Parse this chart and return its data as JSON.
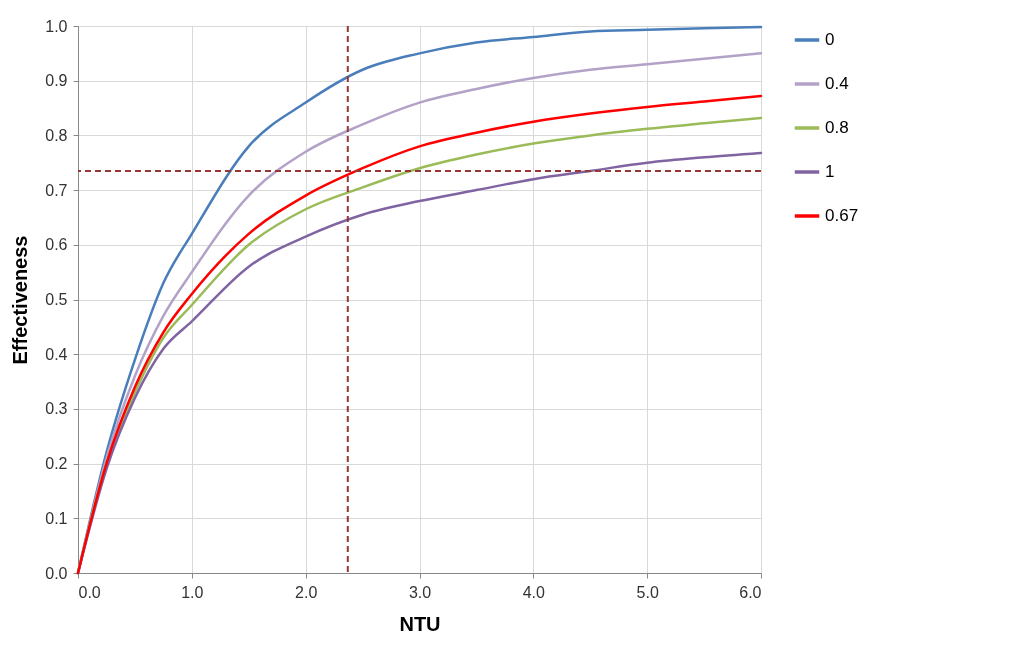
{
  "chart_data": {
    "type": "line",
    "xlabel": "NTU",
    "ylabel": "Effectiveness",
    "x": [
      0,
      0.25,
      0.5,
      0.75,
      1,
      1.5,
      2,
      2.5,
      3,
      3.5,
      4,
      4.5,
      5,
      5.5,
      6
    ],
    "series": [
      {
        "name": "0",
        "color": "#4a7ebb",
        "values": [
          0,
          0.22,
          0.39,
          0.53,
          0.62,
          0.78,
          0.86,
          0.92,
          0.95,
          0.97,
          0.98,
          0.99,
          0.993,
          0.996,
          0.998
        ]
      },
      {
        "name": "0.4",
        "color": "#b3a2c7",
        "values": [
          0,
          0.21,
          0.36,
          0.47,
          0.55,
          0.69,
          0.77,
          0.82,
          0.86,
          0.885,
          0.905,
          0.92,
          0.93,
          0.94,
          0.95
        ]
      },
      {
        "name": "0.8",
        "color": "#9bbb59",
        "values": [
          0,
          0.2,
          0.33,
          0.43,
          0.49,
          0.6,
          0.665,
          0.705,
          0.74,
          0.765,
          0.785,
          0.8,
          0.812,
          0.822,
          0.832
        ]
      },
      {
        "name": "1",
        "color": "#8064a2",
        "values": [
          0,
          0.19,
          0.32,
          0.41,
          0.46,
          0.56,
          0.615,
          0.655,
          0.68,
          0.7,
          0.72,
          0.735,
          0.75,
          0.76,
          0.768
        ]
      },
      {
        "name": "0.67",
        "color": "#ff0000",
        "values": [
          0,
          0.2,
          0.34,
          0.44,
          0.51,
          0.62,
          0.69,
          0.74,
          0.78,
          0.805,
          0.825,
          0.84,
          0.852,
          0.862,
          0.872
        ]
      }
    ],
    "xlim": [
      0,
      6
    ],
    "ylim": [
      0,
      1
    ],
    "xticks": [
      {
        "value": 0,
        "label": "0.0"
      },
      {
        "value": 1,
        "label": "1.0"
      },
      {
        "value": 2,
        "label": "2.0"
      },
      {
        "value": 3,
        "label": "3.0"
      },
      {
        "value": 4,
        "label": "4.0"
      },
      {
        "value": 5,
        "label": "5.0"
      },
      {
        "value": 6,
        "label": "6.0"
      }
    ],
    "yticks": [
      {
        "value": 0,
        "label": "0.0"
      },
      0.1,
      0.2,
      0.3,
      0.4,
      0.5,
      0.6,
      0.7,
      0.8,
      0.9,
      {
        "value": 1,
        "label": "1.0"
      }
    ],
    "ref_lines": [
      {
        "axis": "x",
        "value": 2.37,
        "color": "#953735",
        "line_style": "dashed"
      },
      {
        "axis": "y",
        "value": 0.735,
        "color": "#953735",
        "line_style": "dashed"
      }
    ],
    "grid": true,
    "legend": "right",
    "marker": "none",
    "line_style": "solid"
  }
}
